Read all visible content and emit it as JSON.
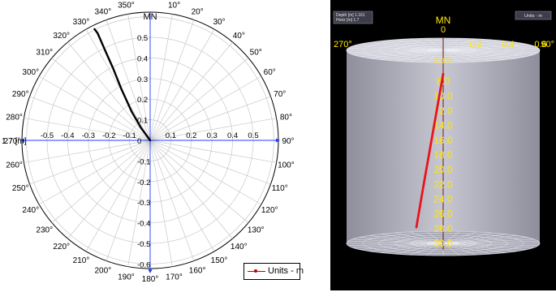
{
  "chart_data": [
    {
      "type": "polar",
      "north_label": "MN",
      "left_axis_label": "1:7 [m]",
      "angle_ticks": [
        "0°",
        "10°",
        "20°",
        "30°",
        "40°",
        "50°",
        "60°",
        "70°",
        "80°",
        "90°",
        "100°",
        "110°",
        "120°",
        "130°",
        "140°",
        "150°",
        "160°",
        "170°",
        "180°",
        "190°",
        "200°",
        "210°",
        "220°",
        "230°",
        "240°",
        "250°",
        "260°",
        "270°",
        "280°",
        "290°",
        "300°",
        "310°",
        "320°",
        "330°",
        "340°",
        "350°"
      ],
      "radial_ticks_vertical": [
        "0.5",
        "0.4",
        "0.3",
        "0.2",
        "0.1",
        "0",
        "-0.1",
        "-0.2",
        "-0.3",
        "-0.4",
        "-0.5",
        "-0.6"
      ],
      "radial_ticks_horizontal": [
        "-0.5",
        "-0.4",
        "-0.3",
        "-0.2",
        "-0.1",
        "0.1",
        "0.2",
        "0.3",
        "0.4",
        "0.5"
      ],
      "range": [
        -0.6,
        0.6
      ],
      "series": [
        {
          "points": [
            [
              0,
              0
            ],
            [
              -0.044,
              0.06
            ],
            [
              -0.09,
              0.14
            ],
            [
              -0.14,
              0.25
            ],
            [
              -0.18,
              0.35
            ],
            [
              -0.22,
              0.44
            ],
            [
              -0.255,
              0.52
            ],
            [
              -0.27,
              0.54
            ]
          ]
        }
      ],
      "legend": {
        "label": "Units - m",
        "position": "bottom-right"
      }
    },
    {
      "type": "3d-cylinder",
      "north_label": "MN",
      "north_zero": "0",
      "info_lines": [
        "Depth [m] 1.161",
        "Horiz [m] 1.7"
      ],
      "units_label": "Units - m",
      "angle_labels": {
        "left": "270°",
        "right": "90°"
      },
      "top_ticks": [
        "0.2",
        "0.4",
        "0.6"
      ],
      "depth_ticks": [
        "8.0",
        "10.0",
        "12.0",
        "14.0",
        "16.0",
        "18.0",
        "20.0",
        "22.0",
        "24.0",
        "26.0",
        "28.0",
        "30.0"
      ],
      "top_cluster_label": "2.000",
      "depth_range": [
        6.0,
        30.0
      ],
      "series": [
        {
          "points": [
            [
              0,
              7.0
            ],
            [
              0.08,
              12.0
            ],
            [
              0.16,
              17.0
            ],
            [
              0.24,
              22.0
            ],
            [
              0.33,
              27.8
            ]
          ]
        }
      ]
    }
  ]
}
